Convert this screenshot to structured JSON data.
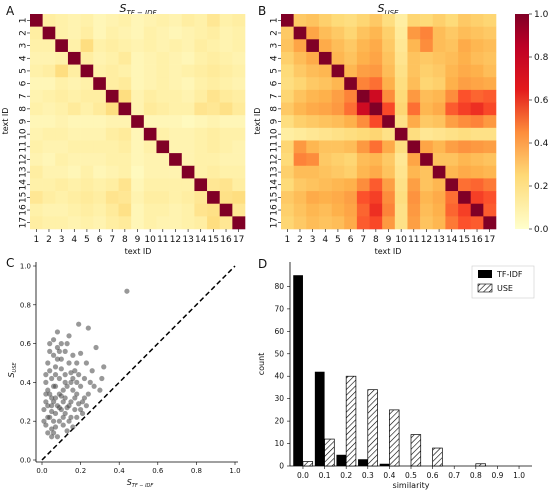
{
  "chart_data": [
    {
      "panel": "A",
      "type": "heatmap",
      "title_main": "S",
      "title_sub": "TF − IDF",
      "xlabel": "text ID",
      "ylabel": "text ID",
      "labels": [
        "1",
        "2",
        "3",
        "4",
        "5",
        "6",
        "7",
        "8",
        "9",
        "10",
        "11",
        "12",
        "13",
        "14",
        "15",
        "16",
        "17"
      ],
      "values": [
        [
          1.0,
          0.12,
          0.1,
          0.08,
          0.1,
          0.06,
          0.08,
          0.1,
          0.06,
          0.08,
          0.1,
          0.08,
          0.12,
          0.1,
          0.16,
          0.1,
          0.12
        ],
        [
          0.12,
          1.0,
          0.1,
          0.08,
          0.12,
          0.06,
          0.1,
          0.08,
          0.06,
          0.1,
          0.08,
          0.06,
          0.08,
          0.1,
          0.12,
          0.08,
          0.1
        ],
        [
          0.1,
          0.1,
          1.0,
          0.1,
          0.22,
          0.1,
          0.12,
          0.1,
          0.08,
          0.1,
          0.08,
          0.1,
          0.08,
          0.12,
          0.1,
          0.08,
          0.1
        ],
        [
          0.08,
          0.08,
          0.1,
          1.0,
          0.12,
          0.08,
          0.1,
          0.14,
          0.06,
          0.08,
          0.1,
          0.08,
          0.06,
          0.1,
          0.12,
          0.1,
          0.08
        ],
        [
          0.1,
          0.12,
          0.22,
          0.12,
          1.0,
          0.1,
          0.12,
          0.1,
          0.06,
          0.08,
          0.1,
          0.08,
          0.1,
          0.12,
          0.14,
          0.12,
          0.1
        ],
        [
          0.06,
          0.06,
          0.1,
          0.08,
          0.1,
          1.0,
          0.12,
          0.14,
          0.06,
          0.08,
          0.1,
          0.08,
          0.06,
          0.1,
          0.12,
          0.1,
          0.08
        ],
        [
          0.08,
          0.1,
          0.12,
          0.1,
          0.12,
          0.12,
          1.0,
          0.22,
          0.08,
          0.12,
          0.1,
          0.1,
          0.08,
          0.12,
          0.18,
          0.14,
          0.12
        ],
        [
          0.1,
          0.08,
          0.1,
          0.14,
          0.1,
          0.14,
          0.22,
          1.0,
          0.08,
          0.14,
          0.12,
          0.1,
          0.1,
          0.18,
          0.16,
          0.2,
          0.14
        ],
        [
          0.06,
          0.06,
          0.08,
          0.06,
          0.06,
          0.06,
          0.08,
          0.08,
          1.0,
          0.06,
          0.06,
          0.06,
          0.04,
          0.06,
          0.08,
          0.06,
          0.06
        ],
        [
          0.08,
          0.1,
          0.1,
          0.08,
          0.08,
          0.08,
          0.12,
          0.14,
          0.06,
          1.0,
          0.1,
          0.08,
          0.08,
          0.1,
          0.12,
          0.1,
          0.1
        ],
        [
          0.1,
          0.08,
          0.08,
          0.1,
          0.1,
          0.1,
          0.1,
          0.12,
          0.06,
          0.1,
          1.0,
          0.08,
          0.08,
          0.1,
          0.12,
          0.1,
          0.08
        ],
        [
          0.08,
          0.06,
          0.1,
          0.08,
          0.08,
          0.08,
          0.1,
          0.1,
          0.06,
          0.08,
          0.08,
          1.0,
          0.08,
          0.1,
          0.1,
          0.08,
          0.08
        ],
        [
          0.12,
          0.08,
          0.08,
          0.06,
          0.1,
          0.06,
          0.08,
          0.1,
          0.04,
          0.08,
          0.08,
          0.08,
          1.0,
          0.1,
          0.12,
          0.1,
          0.1
        ],
        [
          0.1,
          0.1,
          0.12,
          0.1,
          0.12,
          0.1,
          0.12,
          0.18,
          0.06,
          0.1,
          0.1,
          0.1,
          0.1,
          1.0,
          0.16,
          0.18,
          0.12
        ],
        [
          0.16,
          0.12,
          0.1,
          0.12,
          0.14,
          0.12,
          0.18,
          0.16,
          0.08,
          0.12,
          0.12,
          0.1,
          0.12,
          0.16,
          1.0,
          0.2,
          0.22
        ],
        [
          0.1,
          0.08,
          0.08,
          0.1,
          0.12,
          0.1,
          0.14,
          0.2,
          0.06,
          0.1,
          0.1,
          0.08,
          0.1,
          0.18,
          0.2,
          1.0,
          0.16
        ],
        [
          0.12,
          0.1,
          0.1,
          0.08,
          0.1,
          0.08,
          0.12,
          0.14,
          0.06,
          0.1,
          0.08,
          0.08,
          0.1,
          0.12,
          0.22,
          0.16,
          1.0
        ]
      ]
    },
    {
      "panel": "B",
      "type": "heatmap",
      "title_main": "S",
      "title_sub": "USE",
      "xlabel": "text ID",
      "ylabel": "text ID",
      "labels": [
        "1",
        "2",
        "3",
        "4",
        "5",
        "6",
        "7",
        "8",
        "9",
        "10",
        "11",
        "12",
        "13",
        "14",
        "15",
        "16",
        "17"
      ],
      "colorbar_ticks": [
        "0.0",
        "0.2",
        "0.4",
        "0.6",
        "0.8",
        "1.0"
      ],
      "values": [
        [
          1.0,
          0.3,
          0.32,
          0.28,
          0.24,
          0.22,
          0.26,
          0.3,
          0.22,
          0.12,
          0.26,
          0.24,
          0.28,
          0.24,
          0.3,
          0.28,
          0.26
        ],
        [
          0.3,
          1.0,
          0.42,
          0.34,
          0.3,
          0.26,
          0.32,
          0.36,
          0.28,
          0.14,
          0.46,
          0.52,
          0.34,
          0.3,
          0.34,
          0.32,
          0.3
        ],
        [
          0.32,
          0.42,
          1.0,
          0.4,
          0.34,
          0.3,
          0.36,
          0.4,
          0.3,
          0.16,
          0.36,
          0.5,
          0.34,
          0.32,
          0.4,
          0.36,
          0.34
        ],
        [
          0.28,
          0.34,
          0.4,
          1.0,
          0.36,
          0.32,
          0.38,
          0.42,
          0.32,
          0.18,
          0.32,
          0.3,
          0.32,
          0.34,
          0.38,
          0.34,
          0.32
        ],
        [
          0.24,
          0.3,
          0.34,
          0.36,
          1.0,
          0.36,
          0.44,
          0.46,
          0.34,
          0.2,
          0.32,
          0.28,
          0.3,
          0.36,
          0.4,
          0.38,
          0.34
        ],
        [
          0.22,
          0.26,
          0.3,
          0.32,
          0.36,
          1.0,
          0.52,
          0.56,
          0.38,
          0.22,
          0.34,
          0.26,
          0.28,
          0.38,
          0.44,
          0.42,
          0.4
        ],
        [
          0.26,
          0.32,
          0.36,
          0.38,
          0.44,
          0.52,
          1.0,
          0.82,
          0.5,
          0.24,
          0.46,
          0.34,
          0.36,
          0.5,
          0.62,
          0.58,
          0.6
        ],
        [
          0.3,
          0.36,
          0.4,
          0.42,
          0.46,
          0.56,
          0.82,
          1.0,
          0.64,
          0.26,
          0.56,
          0.36,
          0.4,
          0.6,
          0.66,
          0.7,
          0.64
        ],
        [
          0.22,
          0.28,
          0.3,
          0.32,
          0.34,
          0.38,
          0.5,
          0.64,
          1.0,
          0.2,
          0.4,
          0.3,
          0.32,
          0.44,
          0.5,
          0.52,
          0.46
        ],
        [
          0.12,
          0.14,
          0.16,
          0.18,
          0.2,
          0.22,
          0.24,
          0.26,
          0.2,
          1.0,
          0.22,
          0.16,
          0.18,
          0.2,
          0.22,
          0.2,
          0.2
        ],
        [
          0.26,
          0.46,
          0.36,
          0.32,
          0.32,
          0.34,
          0.46,
          0.56,
          0.4,
          0.22,
          1.0,
          0.42,
          0.36,
          0.44,
          0.48,
          0.46,
          0.44
        ],
        [
          0.24,
          0.52,
          0.5,
          0.3,
          0.28,
          0.26,
          0.34,
          0.36,
          0.3,
          0.16,
          0.42,
          1.0,
          0.32,
          0.32,
          0.36,
          0.34,
          0.32
        ],
        [
          0.28,
          0.34,
          0.34,
          0.32,
          0.3,
          0.28,
          0.36,
          0.4,
          0.32,
          0.18,
          0.36,
          0.32,
          1.0,
          0.36,
          0.4,
          0.38,
          0.36
        ],
        [
          0.24,
          0.3,
          0.32,
          0.34,
          0.36,
          0.38,
          0.5,
          0.6,
          0.44,
          0.2,
          0.44,
          0.32,
          0.36,
          1.0,
          0.56,
          0.58,
          0.54
        ],
        [
          0.3,
          0.34,
          0.4,
          0.38,
          0.4,
          0.44,
          0.62,
          0.66,
          0.5,
          0.22,
          0.48,
          0.36,
          0.4,
          0.56,
          1.0,
          0.66,
          0.62
        ],
        [
          0.28,
          0.32,
          0.36,
          0.34,
          0.38,
          0.42,
          0.58,
          0.7,
          0.52,
          0.2,
          0.46,
          0.34,
          0.38,
          0.58,
          0.66,
          1.0,
          0.6
        ],
        [
          0.26,
          0.3,
          0.34,
          0.32,
          0.34,
          0.4,
          0.6,
          0.64,
          0.46,
          0.2,
          0.44,
          0.32,
          0.36,
          0.54,
          0.62,
          0.6,
          1.0
        ]
      ]
    },
    {
      "panel": "C",
      "type": "scatter",
      "xlabel_main": "S",
      "xlabel_sub": "TF − IDF",
      "ylabel_main": "S",
      "ylabel_sub": "USE",
      "xlim": [
        0.0,
        1.0
      ],
      "ylim": [
        0.0,
        1.0
      ],
      "ticks": [
        "0.0",
        "0.2",
        "0.4",
        "0.6",
        "0.8",
        "1.0"
      ],
      "reference_line": "y = x (dashed)",
      "points": [
        [
          0.44,
          0.87
        ],
        [
          0.03,
          0.22
        ],
        [
          0.05,
          0.25
        ],
        [
          0.06,
          0.3
        ],
        [
          0.08,
          0.28
        ],
        [
          0.1,
          0.33
        ],
        [
          0.04,
          0.34
        ],
        [
          0.07,
          0.38
        ],
        [
          0.12,
          0.4
        ],
        [
          0.09,
          0.42
        ],
        [
          0.02,
          0.18
        ],
        [
          0.11,
          0.22
        ],
        [
          0.06,
          0.2
        ],
        [
          0.05,
          0.16
        ],
        [
          0.03,
          0.28
        ],
        [
          0.15,
          0.45
        ],
        [
          0.18,
          0.5
        ],
        [
          0.2,
          0.55
        ],
        [
          0.13,
          0.6
        ],
        [
          0.09,
          0.56
        ],
        [
          0.07,
          0.48
        ],
        [
          0.16,
          0.36
        ],
        [
          0.22,
          0.42
        ],
        [
          0.25,
          0.4
        ],
        [
          0.3,
          0.36
        ],
        [
          0.32,
          0.48
        ],
        [
          0.28,
          0.58
        ],
        [
          0.24,
          0.68
        ],
        [
          0.19,
          0.7
        ],
        [
          0.14,
          0.64
        ],
        [
          0.06,
          0.62
        ],
        [
          0.08,
          0.52
        ],
        [
          0.04,
          0.46
        ],
        [
          0.1,
          0.47
        ],
        [
          0.12,
          0.32
        ],
        [
          0.14,
          0.28
        ],
        [
          0.17,
          0.26
        ],
        [
          0.21,
          0.3
        ],
        [
          0.02,
          0.4
        ],
        [
          0.03,
          0.36
        ],
        [
          0.05,
          0.32
        ],
        [
          0.07,
          0.24
        ],
        [
          0.09,
          0.2
        ],
        [
          0.11,
          0.18
        ],
        [
          0.13,
          0.15
        ],
        [
          0.15,
          0.22
        ],
        [
          0.18,
          0.34
        ],
        [
          0.2,
          0.38
        ],
        [
          0.01,
          0.26
        ],
        [
          0.02,
          0.3
        ],
        [
          0.04,
          0.22
        ],
        [
          0.06,
          0.14
        ],
        [
          0.08,
          0.12
        ],
        [
          0.1,
          0.26
        ],
        [
          0.12,
          0.44
        ],
        [
          0.14,
          0.5
        ],
        [
          0.16,
          0.54
        ],
        [
          0.17,
          0.46
        ],
        [
          0.19,
          0.44
        ],
        [
          0.23,
          0.5
        ],
        [
          0.26,
          0.46
        ],
        [
          0.05,
          0.42
        ],
        [
          0.06,
          0.54
        ],
        [
          0.08,
          0.58
        ],
        [
          0.1,
          0.6
        ],
        [
          0.03,
          0.5
        ],
        [
          0.04,
          0.56
        ],
        [
          0.02,
          0.34
        ],
        [
          0.09,
          0.34
        ],
        [
          0.11,
          0.36
        ],
        [
          0.13,
          0.38
        ],
        [
          0.15,
          0.4
        ],
        [
          0.01,
          0.2
        ],
        [
          0.03,
          0.14
        ],
        [
          0.05,
          0.12
        ],
        [
          0.07,
          0.17
        ],
        [
          0.09,
          0.27
        ],
        [
          0.12,
          0.24
        ],
        [
          0.14,
          0.2
        ],
        [
          0.16,
          0.17
        ],
        [
          0.18,
          0.22
        ],
        [
          0.2,
          0.26
        ],
        [
          0.22,
          0.32
        ],
        [
          0.24,
          0.34
        ],
        [
          0.27,
          0.38
        ],
        [
          0.31,
          0.42
        ],
        [
          0.06,
          0.38
        ],
        [
          0.07,
          0.44
        ],
        [
          0.1,
          0.52
        ],
        [
          0.12,
          0.56
        ],
        [
          0.08,
          0.66
        ],
        [
          0.04,
          0.6
        ],
        [
          0.02,
          0.44
        ],
        [
          0.15,
          0.3
        ],
        [
          0.17,
          0.32
        ],
        [
          0.19,
          0.29
        ],
        [
          0.21,
          0.24
        ],
        [
          0.23,
          0.28
        ],
        [
          0.05,
          0.28
        ],
        [
          0.07,
          0.32
        ],
        [
          0.11,
          0.3
        ],
        [
          0.13,
          0.27
        ],
        [
          0.16,
          0.42
        ],
        [
          0.18,
          0.4
        ]
      ]
    },
    {
      "panel": "D",
      "type": "bar",
      "xlabel": "similarity",
      "ylabel": "count",
      "xlim": [
        0.0,
        1.0
      ],
      "ylim": [
        0,
        90
      ],
      "xticks": [
        "0.0",
        "0.1",
        "0.2",
        "0.3",
        "0.4",
        "0.5",
        "0.6",
        "0.7",
        "0.8",
        "0.9",
        "1.0"
      ],
      "yticks": [
        "0",
        "10",
        "20",
        "30",
        "40",
        "50",
        "60",
        "70",
        "80"
      ],
      "bins": [
        0.0,
        0.1,
        0.2,
        0.3,
        0.4,
        0.5,
        0.6,
        0.7,
        0.8,
        0.9
      ],
      "series": [
        {
          "name": "TF-IDF",
          "values": [
            85,
            42,
            5,
            3,
            1,
            0,
            0,
            0,
            0,
            0
          ]
        },
        {
          "name": "USE",
          "values": [
            2,
            12,
            40,
            34,
            25,
            14,
            8,
            0,
            1,
            0
          ]
        }
      ],
      "legend_position": "top-right"
    }
  ],
  "panels": {
    "A": "A",
    "B": "B",
    "C": "C",
    "D": "D"
  },
  "colors": {
    "low": "#ffffcc",
    "mid": "#fd8d3c",
    "high": "#800026",
    "scatter": "#444444",
    "bar_tfidf": "#000000"
  }
}
